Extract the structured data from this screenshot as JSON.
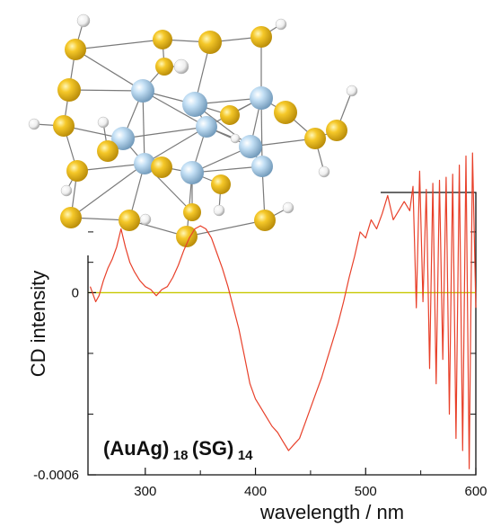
{
  "chart_data": {
    "type": "line",
    "title": "",
    "xlabel": "wavelength / nm",
    "ylabel": "CD intensity",
    "xlim": [
      248,
      600
    ],
    "ylim": [
      -0.0006,
      0.00033
    ],
    "x_ticks": [
      300,
      400,
      500,
      600
    ],
    "y_ticks": [
      {
        "value": 0,
        "label": "0"
      },
      {
        "value": -0.0006,
        "label": "-0.0006"
      }
    ],
    "zero_line": true,
    "grid": false,
    "legend": "none",
    "annotation": {
      "formula": {
        "part1": "(AuAg)",
        "sub1": "18",
        "part2": "(SG)",
        "sub2": "14"
      }
    },
    "series": [
      {
        "color": "#e8402a",
        "x": [
          250,
          255,
          258,
          262,
          266,
          270,
          274,
          278,
          282,
          286,
          290,
          295,
          300,
          305,
          310,
          315,
          320,
          325,
          330,
          335,
          340,
          345,
          350,
          355,
          360,
          365,
          370,
          375,
          380,
          385,
          390,
          395,
          400,
          405,
          410,
          415,
          420,
          425,
          430,
          435,
          440,
          445,
          450,
          455,
          460,
          465,
          470,
          475,
          480,
          485,
          490,
          495,
          500,
          505,
          510,
          515,
          520,
          525,
          530,
          535,
          540,
          543,
          546,
          549,
          552,
          555,
          558,
          561,
          564,
          567,
          570,
          573,
          576,
          579,
          582,
          585,
          588,
          591,
          594,
          597,
          600
        ],
        "y": [
          2e-05,
          -3e-05,
          -1e-05,
          4e-05,
          8e-05,
          0.00011,
          0.00015,
          0.00021,
          0.00015,
          0.0001,
          7e-05,
          4e-05,
          2e-05,
          1e-05,
          -1e-05,
          1e-05,
          2e-05,
          5e-05,
          9e-05,
          0.00014,
          0.00018,
          0.00021,
          0.00022,
          0.00021,
          0.00018,
          0.00013,
          8e-05,
          2e-05,
          -5e-05,
          -0.00012,
          -0.00021,
          -0.0003,
          -0.00035,
          -0.00038,
          -0.00041,
          -0.00044,
          -0.00046,
          -0.00049,
          -0.00052,
          -0.0005,
          -0.00048,
          -0.00043,
          -0.00038,
          -0.00033,
          -0.00028,
          -0.00022,
          -0.00016,
          -0.0001,
          -3e-05,
          5e-05,
          0.00012,
          0.0002,
          0.00018,
          0.00024,
          0.00021,
          0.00026,
          0.00032,
          0.00024,
          0.00027,
          0.0003,
          0.00027,
          0.00035,
          -5e-05,
          0.0004,
          -3e-05,
          0.00034,
          -0.00025,
          0.00036,
          -0.0003,
          0.00037,
          -0.00022,
          0.00038,
          -0.0004,
          0.00039,
          -0.00048,
          0.00042,
          -0.00052,
          0.00045,
          -0.00058,
          0.00046,
          -5e-05
        ]
      }
    ]
  },
  "molecule": {
    "colors": {
      "silver": "#9cc8e8",
      "sulfur": "#f3c321",
      "hydrogen": "#f3f3f3",
      "bond": "#777777"
    }
  }
}
